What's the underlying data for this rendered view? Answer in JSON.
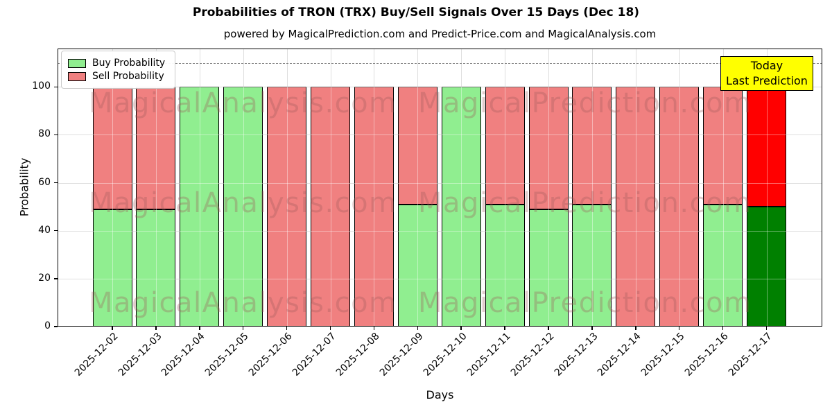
{
  "title": "Probabilities of TRON (TRX) Buy/Sell Signals Over 15 Days (Dec 18)",
  "subtitle": "powered by MagicalPrediction.com and Predict-Price.com and MagicalAnalysis.com",
  "watermarks": {
    "left": "MagicalAnalysis.com",
    "right": "MagicalPrediction.com"
  },
  "annotation": {
    "line1": "Today",
    "line2": "Last Prediction",
    "bg": "#ffff00"
  },
  "chart_data": {
    "type": "bar",
    "stacked": true,
    "title": "Probabilities of TRON (TRX) Buy/Sell Signals Over 15 Days (Dec 18)",
    "xlabel": "Days",
    "ylabel": "Probability",
    "categories": [
      "2025-12-02",
      "2025-12-03",
      "2025-12-04",
      "2025-12-05",
      "2025-12-06",
      "2025-12-07",
      "2025-12-08",
      "2025-12-09",
      "2025-12-10",
      "2025-12-11",
      "2025-12-12",
      "2025-12-13",
      "2025-12-14",
      "2025-12-15",
      "2025-12-16",
      "2025-12-17"
    ],
    "series": [
      {
        "name": "Buy Probability",
        "color": "#90ee90",
        "today_color": "#008000",
        "values": [
          49,
          49,
          100,
          100,
          0,
          0,
          0,
          51,
          100,
          51,
          49,
          51,
          0,
          0,
          51,
          50
        ]
      },
      {
        "name": "Sell Probability",
        "color": "#f08080",
        "today_color": "#ff0000",
        "values": [
          51,
          51,
          0,
          0,
          100,
          100,
          100,
          49,
          0,
          49,
          51,
          49,
          100,
          100,
          49,
          50
        ]
      }
    ],
    "today_index": 15,
    "yticks": [
      0,
      20,
      40,
      60,
      80,
      100
    ],
    "ylim": [
      0,
      116
    ],
    "dashed_line_y": 110,
    "grid": true,
    "legend_position": "upper left"
  }
}
